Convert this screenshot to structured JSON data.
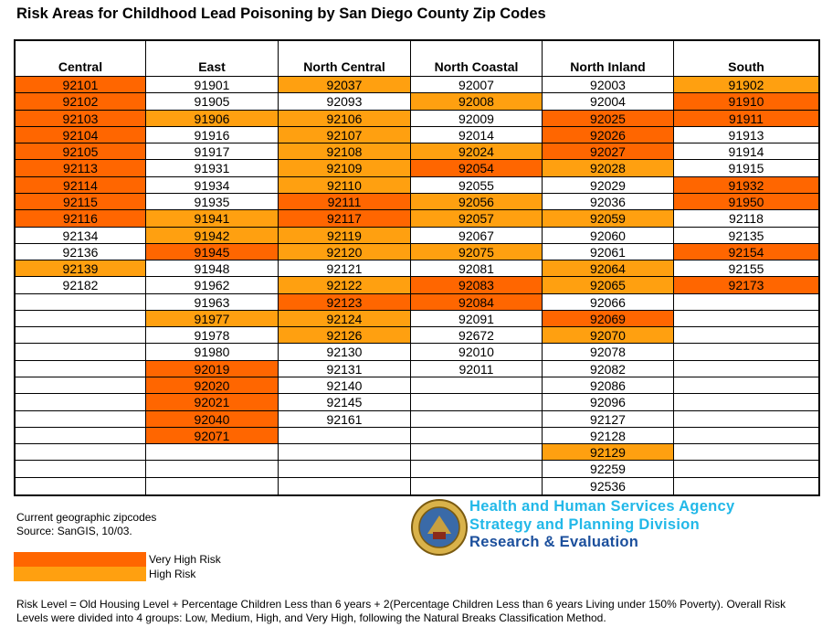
{
  "header": {
    "title": "Risk Areas for Childhood Lead Poisoning by San Diego County Zip Codes"
  },
  "risk_colors": {
    "very_high": "#ff6600",
    "high": "#ffa010"
  },
  "table": {
    "columns": [
      {
        "name": "Central",
        "cells": [
          {
            "zip": "92101",
            "risk": "very_high"
          },
          {
            "zip": "92102",
            "risk": "very_high"
          },
          {
            "zip": "92103",
            "risk": "very_high"
          },
          {
            "zip": "92104",
            "risk": "very_high"
          },
          {
            "zip": "92105",
            "risk": "very_high"
          },
          {
            "zip": "92113",
            "risk": "very_high"
          },
          {
            "zip": "92114",
            "risk": "very_high"
          },
          {
            "zip": "92115",
            "risk": "very_high"
          },
          {
            "zip": "92116",
            "risk": "very_high"
          },
          {
            "zip": "92134"
          },
          {
            "zip": "92136"
          },
          {
            "zip": "92139",
            "risk": "high"
          },
          {
            "zip": "92182"
          }
        ]
      },
      {
        "name": "East",
        "cells": [
          {
            "zip": "91901"
          },
          {
            "zip": "91905"
          },
          {
            "zip": "91906",
            "risk": "high"
          },
          {
            "zip": "91916"
          },
          {
            "zip": "91917"
          },
          {
            "zip": "91931"
          },
          {
            "zip": "91934"
          },
          {
            "zip": "91935"
          },
          {
            "zip": "91941",
            "risk": "high"
          },
          {
            "zip": "91942",
            "risk": "high"
          },
          {
            "zip": "91945",
            "risk": "very_high"
          },
          {
            "zip": "91948"
          },
          {
            "zip": "91962"
          },
          {
            "zip": "91963"
          },
          {
            "zip": "91977",
            "risk": "high"
          },
          {
            "zip": "91978"
          },
          {
            "zip": "91980"
          },
          {
            "zip": "92019",
            "risk": "very_high"
          },
          {
            "zip": "92020",
            "risk": "very_high"
          },
          {
            "zip": "92021",
            "risk": "very_high"
          },
          {
            "zip": "92040",
            "risk": "very_high"
          },
          {
            "zip": "92071",
            "risk": "very_high"
          }
        ]
      },
      {
        "name": "North Central",
        "cells": [
          {
            "zip": "92037",
            "risk": "high"
          },
          {
            "zip": "92093"
          },
          {
            "zip": "92106",
            "risk": "high"
          },
          {
            "zip": "92107",
            "risk": "high"
          },
          {
            "zip": "92108",
            "risk": "high"
          },
          {
            "zip": "92109",
            "risk": "high"
          },
          {
            "zip": "92110",
            "risk": "high"
          },
          {
            "zip": "92111",
            "risk": "very_high"
          },
          {
            "zip": "92117",
            "risk": "very_high"
          },
          {
            "zip": "92119",
            "risk": "high"
          },
          {
            "zip": "92120",
            "risk": "high"
          },
          {
            "zip": "92121"
          },
          {
            "zip": "92122",
            "risk": "high"
          },
          {
            "zip": "92123",
            "risk": "very_high"
          },
          {
            "zip": "92124",
            "risk": "high"
          },
          {
            "zip": "92126",
            "risk": "high"
          },
          {
            "zip": "92130"
          },
          {
            "zip": "92131"
          },
          {
            "zip": "92140"
          },
          {
            "zip": "92145"
          },
          {
            "zip": "92161"
          }
        ]
      },
      {
        "name": "North Coastal",
        "cells": [
          {
            "zip": "92007"
          },
          {
            "zip": "92008",
            "risk": "high"
          },
          {
            "zip": "92009"
          },
          {
            "zip": "92014"
          },
          {
            "zip": "92024",
            "risk": "high"
          },
          {
            "zip": "92054",
            "risk": "very_high"
          },
          {
            "zip": "92055"
          },
          {
            "zip": "92056",
            "risk": "high"
          },
          {
            "zip": "92057",
            "risk": "high"
          },
          {
            "zip": "92067"
          },
          {
            "zip": "92075",
            "risk": "high"
          },
          {
            "zip": "92081"
          },
          {
            "zip": "92083",
            "risk": "very_high"
          },
          {
            "zip": "92084",
            "risk": "very_high"
          },
          {
            "zip": "92091"
          },
          {
            "zip": "92672"
          },
          {
            "zip": "92010"
          },
          {
            "zip": "92011"
          }
        ]
      },
      {
        "name": "North Inland",
        "cells": [
          {
            "zip": "92003"
          },
          {
            "zip": "92004"
          },
          {
            "zip": "92025",
            "risk": "very_high"
          },
          {
            "zip": "92026",
            "risk": "very_high"
          },
          {
            "zip": "92027",
            "risk": "very_high"
          },
          {
            "zip": "92028",
            "risk": "high"
          },
          {
            "zip": "92029"
          },
          {
            "zip": "92036"
          },
          {
            "zip": "92059",
            "risk": "high"
          },
          {
            "zip": "92060"
          },
          {
            "zip": "92061"
          },
          {
            "zip": "92064",
            "risk": "high"
          },
          {
            "zip": "92065",
            "risk": "high"
          },
          {
            "zip": "92066"
          },
          {
            "zip": "92069",
            "risk": "very_high"
          },
          {
            "zip": "92070",
            "risk": "high"
          },
          {
            "zip": "92078"
          },
          {
            "zip": "92082"
          },
          {
            "zip": "92086"
          },
          {
            "zip": "92096"
          },
          {
            "zip": "92127"
          },
          {
            "zip": "92128"
          },
          {
            "zip": "92129",
            "risk": "high"
          },
          {
            "zip": "92259"
          },
          {
            "zip": "92536"
          }
        ]
      },
      {
        "name": "South",
        "cells": [
          {
            "zip": "91902",
            "risk": "high"
          },
          {
            "zip": "91910",
            "risk": "very_high"
          },
          {
            "zip": "91911",
            "risk": "very_high"
          },
          {
            "zip": "91913"
          },
          {
            "zip": "91914"
          },
          {
            "zip": "91915"
          },
          {
            "zip": "91932",
            "risk": "very_high"
          },
          {
            "zip": "91950",
            "risk": "very_high"
          },
          {
            "zip": "92118"
          },
          {
            "zip": "92135"
          },
          {
            "zip": "92154",
            "risk": "very_high"
          },
          {
            "zip": "92155"
          },
          {
            "zip": "92173",
            "risk": "very_high"
          }
        ]
      }
    ]
  },
  "footer": {
    "notes": [
      "Current geographic zipcodes",
      "Source: SanGIS, 10/03."
    ],
    "legend": [
      {
        "label": "Very High Risk",
        "risk": "very_high"
      },
      {
        "label": "High Risk",
        "risk": "high"
      }
    ],
    "agency": [
      "Health and Human Services Agency",
      "Strategy and Planning Division",
      "Research & Evaluation"
    ],
    "method": "Risk Level = Old Housing Level + Percentage Children Less than 6 years + 2(Percentage Children Less than 6 years Living under 150% Poverty). Overall Risk Levels were divided into 4 groups: Low, Medium, High, and Very High, following the Natural Breaks Classification Method."
  }
}
